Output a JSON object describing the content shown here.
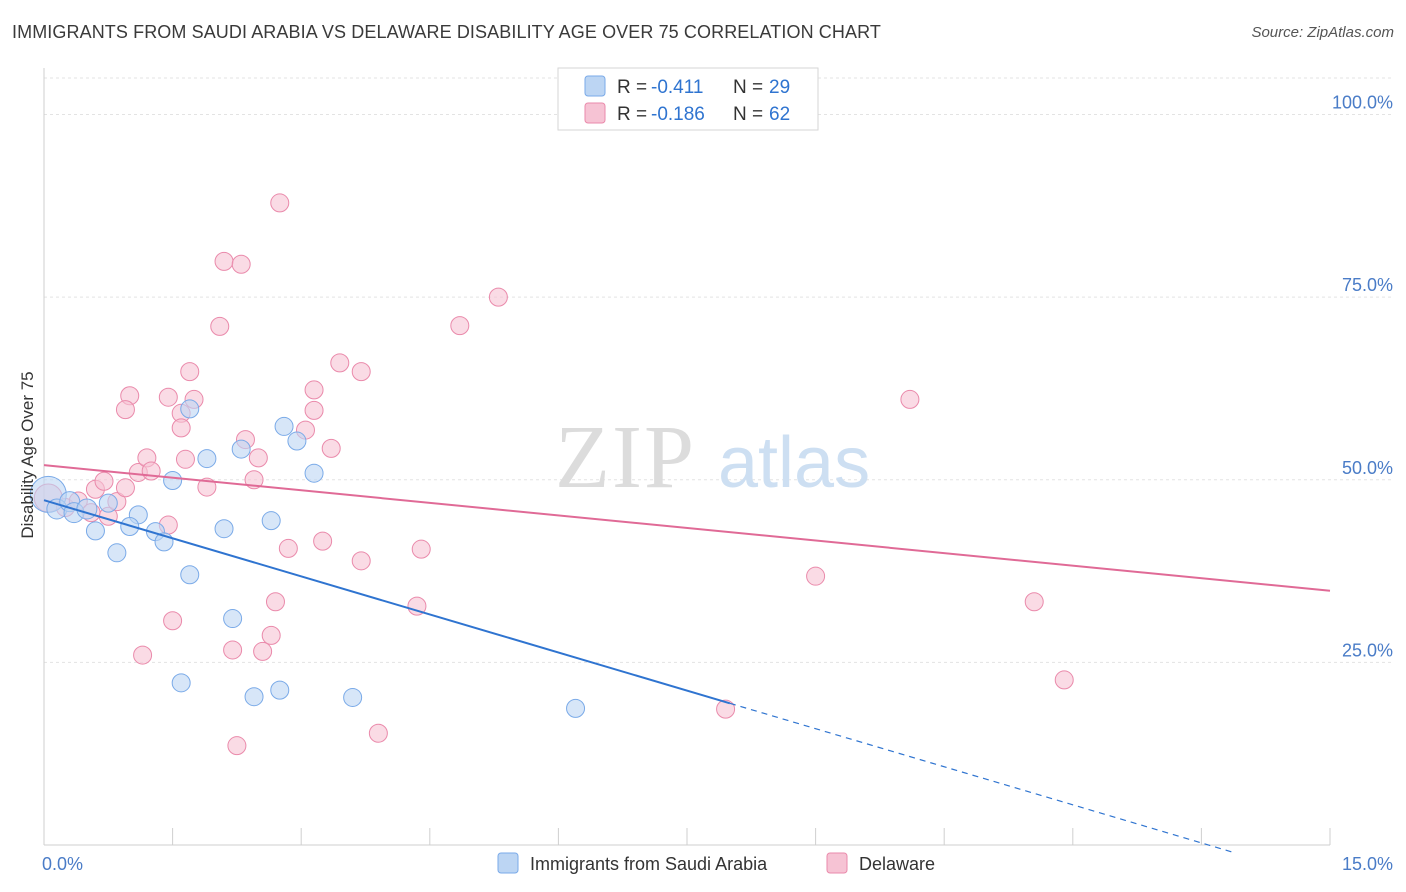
{
  "title": "IMMIGRANTS FROM SAUDI ARABIA VS DELAWARE DISABILITY AGE OVER 75 CORRELATION CHART",
  "source": "Source: ZipAtlas.com",
  "watermark": {
    "zip": "ZIP",
    "atlas": "atlas"
  },
  "colors": {
    "blue": "#7aaae8",
    "blue_fill": "#bcd5f3",
    "blue_line": "#2f74d0",
    "pink": "#ea8aab",
    "pink_fill": "#f6c3d4",
    "pink_line": "#e06a96",
    "axis_text": "#4a7cc7",
    "grid": "#e3e3e3"
  },
  "chart_data": {
    "type": "scatter",
    "xlabel": "",
    "ylabel": "Disability Age Over 75",
    "xlim": [
      0,
      15
    ],
    "ylim": [
      0,
      105
    ],
    "x_tick_labels": [
      {
        "value": 0,
        "label": "0.0%"
      },
      {
        "value": 15,
        "label": "15.0%"
      }
    ],
    "y_tick_labels": [
      {
        "value": 25,
        "label": "25.0%"
      },
      {
        "value": 50,
        "label": "50.0%"
      },
      {
        "value": 75,
        "label": "75.0%"
      },
      {
        "value": 100,
        "label": "100.0%"
      }
    ],
    "legend": [
      {
        "r_label": "R = ",
        "r_value": "-0.411",
        "n_label": "N = ",
        "n_value": "29"
      },
      {
        "r_label": "R = ",
        "r_value": "-0.186",
        "n_label": "N = ",
        "n_value": "62"
      }
    ],
    "series": [
      {
        "name": "Immigrants from Saudi Arabia",
        "color": "blue",
        "trend": {
          "x0": 0.0,
          "y0": 47.2,
          "x1": 8.0,
          "y1": 19.4,
          "dash_to_x": 13.9
        },
        "points": [
          [
            0.05,
            48.0,
            18
          ],
          [
            0.15,
            46.0,
            10
          ],
          [
            0.3,
            47.0,
            10
          ],
          [
            0.35,
            45.5,
            10
          ],
          [
            0.5,
            46.0,
            10
          ],
          [
            0.6,
            43.0,
            9
          ],
          [
            0.75,
            46.8,
            9
          ],
          [
            0.85,
            40.0,
            9
          ],
          [
            1.1,
            45.2,
            9
          ],
          [
            1.0,
            43.6,
            9
          ],
          [
            1.3,
            42.9,
            9
          ],
          [
            1.4,
            41.5,
            9
          ],
          [
            1.5,
            49.9,
            9
          ],
          [
            1.6,
            22.2,
            9
          ],
          [
            1.7,
            37.0,
            9
          ],
          [
            1.7,
            59.7,
            9
          ],
          [
            1.9,
            52.9,
            9
          ],
          [
            2.1,
            43.3,
            9
          ],
          [
            2.2,
            31.0,
            9
          ],
          [
            2.3,
            54.2,
            9
          ],
          [
            2.45,
            20.3,
            9
          ],
          [
            2.65,
            44.4,
            9
          ],
          [
            2.75,
            21.2,
            9
          ],
          [
            2.8,
            57.3,
            9
          ],
          [
            2.95,
            55.3,
            9
          ],
          [
            3.15,
            50.9,
            9
          ],
          [
            3.6,
            20.2,
            9
          ],
          [
            6.2,
            18.7,
            9
          ]
        ]
      },
      {
        "name": "Delaware",
        "color": "pink",
        "trend": {
          "x0": 0.0,
          "y0": 52.0,
          "x1": 15.0,
          "y1": 34.8
        },
        "points": [
          [
            0.05,
            47.5,
            14
          ],
          [
            0.25,
            46.2,
            9
          ],
          [
            0.4,
            47.1,
            9
          ],
          [
            0.55,
            45.5,
            9
          ],
          [
            0.6,
            48.7,
            9
          ],
          [
            0.7,
            49.8,
            9
          ],
          [
            0.75,
            45.0,
            9
          ],
          [
            0.85,
            47.0,
            9
          ],
          [
            0.95,
            48.9,
            9
          ],
          [
            1.0,
            61.5,
            9
          ],
          [
            0.95,
            59.6,
            9
          ],
          [
            1.1,
            51.0,
            9
          ],
          [
            1.2,
            53.0,
            9
          ],
          [
            1.25,
            51.2,
            9
          ],
          [
            1.15,
            26.0,
            9
          ],
          [
            1.45,
            61.3,
            9
          ],
          [
            1.45,
            43.8,
            9
          ],
          [
            1.5,
            30.7,
            9
          ],
          [
            1.6,
            59.1,
            9
          ],
          [
            1.6,
            57.1,
            9
          ],
          [
            1.65,
            52.8,
            9
          ],
          [
            1.7,
            64.8,
            9
          ],
          [
            1.75,
            61.0,
            9
          ],
          [
            1.9,
            49.0,
            9
          ],
          [
            2.05,
            71.0,
            9
          ],
          [
            2.1,
            79.9,
            9
          ],
          [
            2.2,
            26.7,
            9
          ],
          [
            2.25,
            13.6,
            9
          ],
          [
            2.3,
            79.5,
            9
          ],
          [
            2.35,
            55.5,
            9
          ],
          [
            2.45,
            50.0,
            9
          ],
          [
            2.5,
            53.0,
            9
          ],
          [
            2.55,
            26.5,
            9
          ],
          [
            2.65,
            28.7,
            9
          ],
          [
            2.7,
            33.3,
            9
          ],
          [
            2.75,
            87.9,
            9
          ],
          [
            2.85,
            40.6,
            9
          ],
          [
            3.05,
            56.8,
            9
          ],
          [
            3.15,
            62.3,
            9
          ],
          [
            3.15,
            59.5,
            9
          ],
          [
            3.25,
            41.6,
            9
          ],
          [
            3.35,
            54.3,
            9
          ],
          [
            3.45,
            66.0,
            9
          ],
          [
            3.7,
            64.8,
            9
          ],
          [
            3.7,
            38.9,
            9
          ],
          [
            3.9,
            15.3,
            9
          ],
          [
            4.35,
            32.7,
            9
          ],
          [
            4.4,
            40.5,
            9
          ],
          [
            4.85,
            71.1,
            9
          ],
          [
            5.3,
            75.0,
            9
          ],
          [
            7.95,
            18.6,
            9
          ],
          [
            9.0,
            36.8,
            9
          ],
          [
            10.1,
            61.0,
            9
          ],
          [
            11.55,
            33.3,
            9
          ],
          [
            11.9,
            22.6,
            9
          ]
        ]
      }
    ]
  }
}
